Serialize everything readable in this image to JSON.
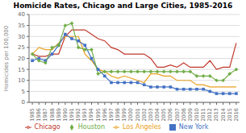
{
  "chart_data": {
    "type": "line",
    "title": "Homicide Rates, Chicago and Large Cities, 1985-2016",
    "y_label": "Homicides per 100,000",
    "x": [
      1985,
      1986,
      1987,
      1988,
      1989,
      1990,
      1991,
      1992,
      1993,
      1994,
      1995,
      1996,
      1997,
      1998,
      1999,
      2000,
      2001,
      2002,
      2003,
      2004,
      2005,
      2006,
      2007,
      2008,
      2009,
      2010,
      2011,
      2012,
      2013,
      2014,
      2015,
      2016
    ],
    "series": [
      {
        "name": "Chicago",
        "color": "#c0392b",
        "values": [
          22,
          21,
          21,
          22,
          22,
          30,
          33,
          33,
          33,
          31,
          29,
          28,
          25,
          24,
          22,
          22,
          22,
          22,
          20,
          16,
          16,
          17,
          16,
          18,
          16,
          16,
          16,
          19,
          15,
          16,
          16,
          27
        ]
      },
      {
        "name": "Los Angeles",
        "color": "#e8a020",
        "values": [
          22,
          25,
          24,
          24,
          27,
          30,
          30,
          30,
          22,
          19,
          15,
          14,
          12,
          11,
          12,
          11,
          10,
          9,
          13,
          13,
          12,
          12,
          10,
          10,
          10,
          8,
          8,
          7,
          7,
          7,
          7,
          7
        ]
      },
      {
        "name": "New York",
        "color": "#4472c4",
        "marker": "square",
        "values": [
          19,
          20,
          19,
          22,
          26,
          31,
          29,
          28,
          26,
          20,
          15,
          12,
          9,
          9,
          9,
          9,
          9,
          8,
          7,
          7,
          7,
          7,
          6,
          6,
          6,
          6,
          6,
          5,
          4,
          4,
          4,
          4
        ]
      },
      {
        "name": "Houston",
        "color": "#70ad47",
        "marker": "diamond",
        "values": [
          22,
          19,
          18,
          25,
          26,
          35,
          36,
          25,
          24,
          24,
          13,
          14,
          14,
          14,
          14,
          14,
          14,
          14,
          14,
          14,
          14,
          14,
          14,
          14,
          14,
          12,
          12,
          12,
          10,
          10,
          13,
          15
        ]
      }
    ],
    "xlim": [
      1984.5,
      2016.5
    ],
    "xticks": [
      1985,
      1986,
      1987,
      1988,
      1989,
      1990,
      1991,
      1992,
      1993,
      1994,
      1995,
      1996,
      1997,
      1998,
      1999,
      2000,
      2001,
      2002,
      2003,
      2004,
      2005,
      2006,
      2007,
      2008,
      2009,
      2010,
      2011,
      2012,
      2013,
      2014,
      2015,
      2016
    ],
    "ylim": [
      0,
      40
    ],
    "yticks": [
      0,
      5,
      10,
      15,
      20,
      25,
      30,
      35,
      40
    ],
    "grid": "y",
    "legend": "bottom"
  }
}
